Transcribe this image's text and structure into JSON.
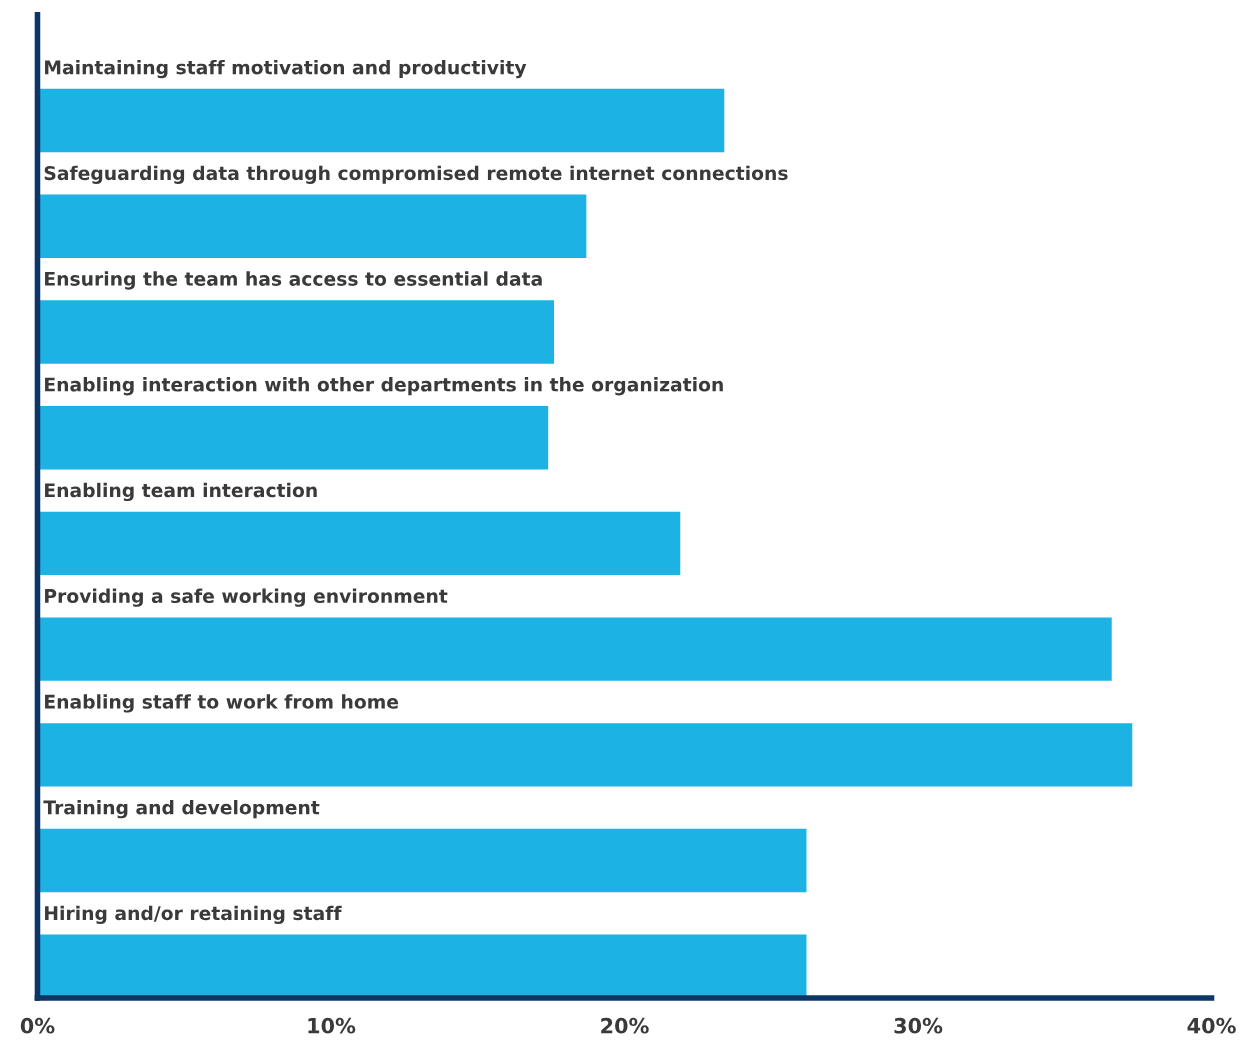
{
  "chart_data": {
    "type": "bar",
    "orientation": "horizontal",
    "categories": [
      "Maintaining staff motivation and productivity",
      "Safeguarding data through compromised remote internet connections",
      "Ensuring the team has access to essential data",
      "Enabling interaction with other departments in the organization",
      "Enabling team interaction",
      "Providing a safe working environment",
      "Enabling staff to work from home",
      "Training and development",
      "Hiring and/or retaining staff"
    ],
    "values": [
      23.4,
      18.7,
      17.6,
      17.4,
      21.9,
      36.6,
      37.3,
      26.2,
      26.2
    ],
    "color": "#1cb2e3",
    "xlim": [
      0,
      40
    ],
    "xticks": [
      {
        "value": 0,
        "label": "0%"
      },
      {
        "value": 10,
        "label": "10%"
      },
      {
        "value": 20,
        "label": "20%"
      },
      {
        "value": 30,
        "label": "30%"
      },
      {
        "value": 40,
        "label": "40%"
      }
    ],
    "grid": false,
    "legend": false
  }
}
